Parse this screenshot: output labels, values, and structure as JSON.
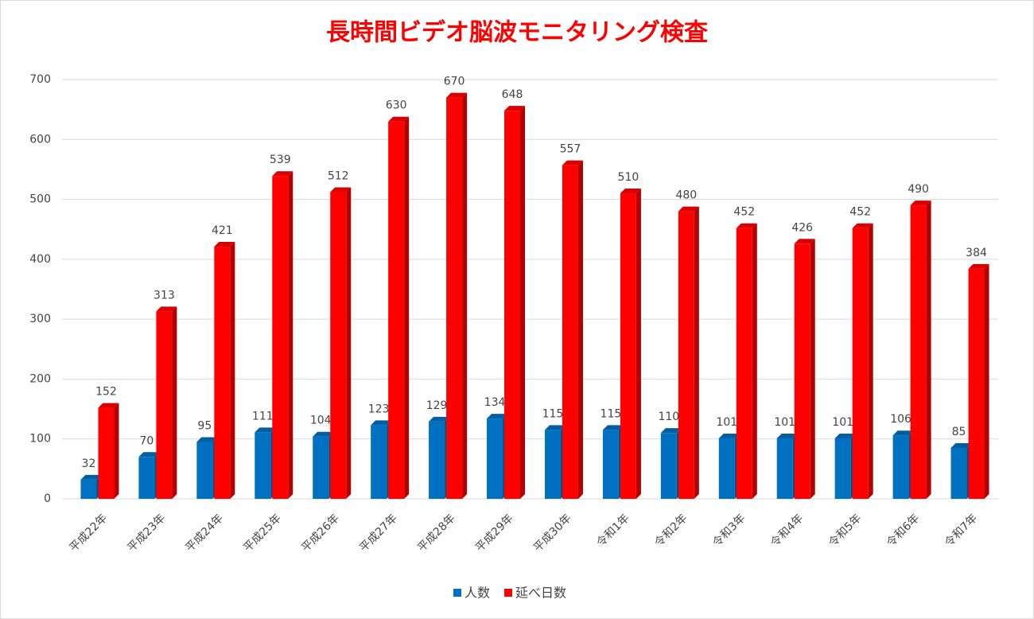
{
  "chart_data": {
    "type": "bar",
    "title": "長時間ビデオ脳波モニタリング検査",
    "categories": [
      "平成22年",
      "平成23年",
      "平成24年",
      "平成25年",
      "平成26年",
      "平成27年",
      "平成28年",
      "平成29年",
      "平成30年",
      "令和1年",
      "令和2年",
      "令和3年",
      "令和4年",
      "令和5年",
      "令和6年",
      "令和7年"
    ],
    "series": [
      {
        "name": "人数",
        "color": "#0070c0",
        "values": [
          32,
          70,
          95,
          111,
          104,
          123,
          129,
          134,
          115,
          115,
          110,
          101,
          101,
          101,
          106,
          85
        ]
      },
      {
        "name": "延べ日数",
        "color": "#ff0000",
        "values": [
          152,
          313,
          421,
          539,
          512,
          630,
          670,
          648,
          557,
          510,
          480,
          452,
          426,
          452,
          490,
          384
        ]
      }
    ],
    "ylim": [
      0,
      700
    ],
    "yticks": [
      0,
      100,
      200,
      300,
      400,
      500,
      600,
      700
    ],
    "grid": true,
    "legend": "bottom"
  }
}
